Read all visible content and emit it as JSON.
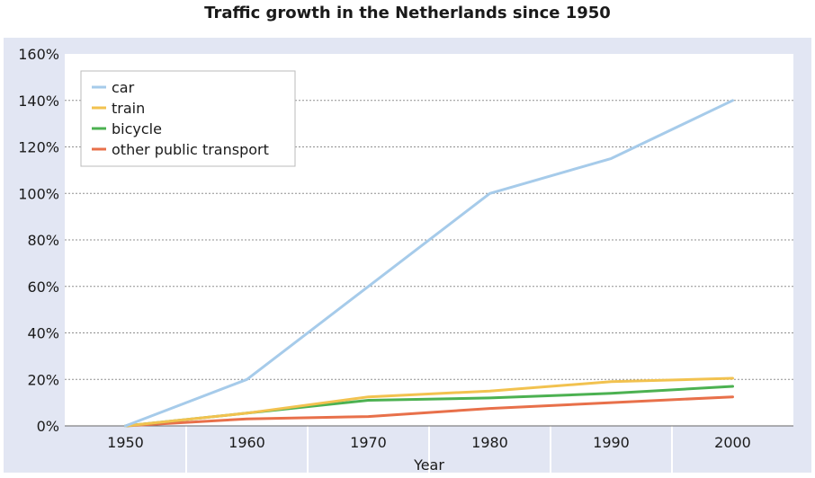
{
  "chart_data": {
    "type": "line",
    "title": "Traffic growth in the Netherlands since 1950",
    "xlabel": "Year",
    "ylabel": "",
    "categories": [
      "1950",
      "1960",
      "1970",
      "1980",
      "1990",
      "2000"
    ],
    "ylim": [
      0,
      160
    ],
    "yticks": [
      "0%",
      "20%",
      "40%",
      "60%",
      "80%",
      "100%",
      "120%",
      "140%",
      "160%"
    ],
    "grid": true,
    "legend_position": "top-left",
    "background_color": "#e2e6f3",
    "plot_color": "#ffffff",
    "series": [
      {
        "name": "car",
        "color": "#a6cbea",
        "values": [
          0,
          20,
          60,
          100,
          115,
          140
        ]
      },
      {
        "name": "train",
        "color": "#f2c24f",
        "values": [
          0,
          5.5,
          12.5,
          15,
          19,
          20.5
        ]
      },
      {
        "name": "bicycle",
        "color": "#4cb151",
        "values": [
          0,
          5.5,
          11,
          12,
          14,
          17
        ]
      },
      {
        "name": "other public transport",
        "color": "#e8704a",
        "values": [
          0,
          3,
          4,
          7.5,
          10,
          12.5
        ]
      }
    ]
  }
}
